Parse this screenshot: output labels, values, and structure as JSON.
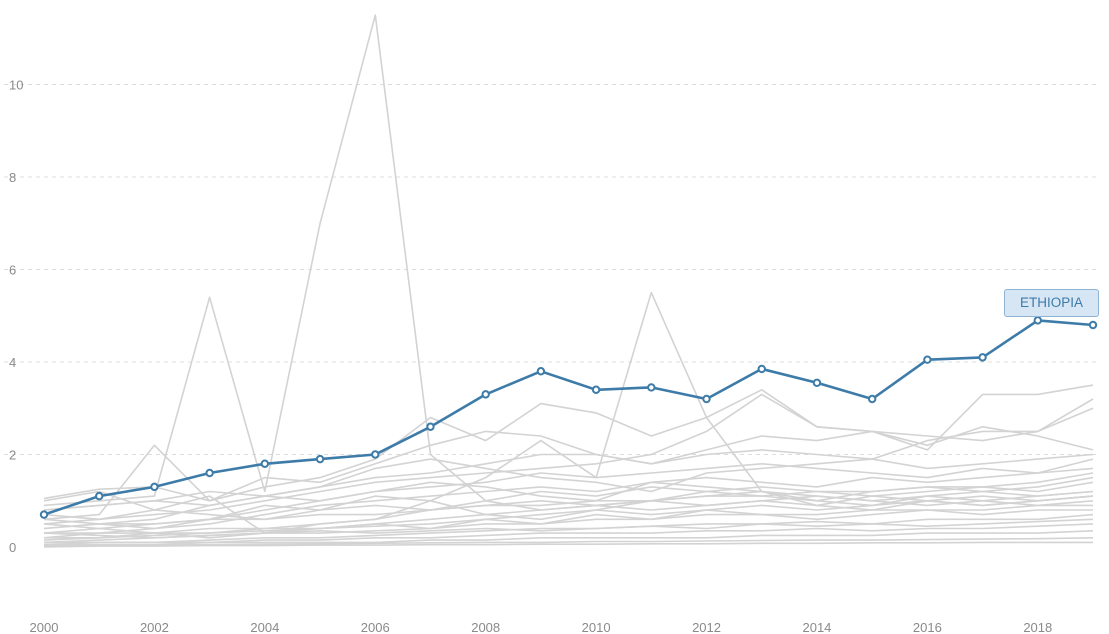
{
  "chart_data": {
    "type": "line",
    "title": "",
    "xlabel": "",
    "ylabel": "",
    "xlim": [
      2000,
      2019
    ],
    "ylim": [
      0,
      11.5
    ],
    "x_ticks": [
      "2000",
      "2002",
      "2004",
      "2006",
      "2008",
      "2010",
      "2012",
      "2014",
      "2016",
      "2018"
    ],
    "y_ticks": [
      "0",
      "2",
      "4",
      "6",
      "8",
      "10"
    ],
    "grid": "horizontal-dashed",
    "highlight_color": "#3d7ba8",
    "background_series_color": "#d3d3d3",
    "x": [
      2000,
      2001,
      2002,
      2003,
      2004,
      2005,
      2006,
      2007,
      2008,
      2009,
      2010,
      2011,
      2012,
      2013,
      2014,
      2015,
      2016,
      2017,
      2018,
      2019
    ],
    "highlight": {
      "name": "ETHIOPIA",
      "values": [
        0.7,
        1.1,
        1.3,
        1.6,
        1.8,
        1.9,
        2.0,
        2.6,
        3.3,
        3.8,
        3.4,
        3.45,
        3.2,
        3.85,
        3.55,
        3.2,
        4.05,
        4.1,
        4.9,
        4.8
      ]
    },
    "background_series": [
      [
        0.9,
        1.0,
        1.1,
        5.4,
        1.2,
        7.0,
        11.5,
        2.0,
        1.0,
        0.8,
        0.9,
        1.0,
        1.1,
        1.2,
        1.1,
        1.0,
        1.1,
        1.2,
        1.1,
        1.2
      ],
      [
        0.6,
        0.7,
        2.2,
        1.0,
        1.3,
        1.5,
        1.9,
        2.8,
        2.3,
        3.1,
        2.9,
        2.4,
        2.8,
        3.4,
        2.6,
        2.5,
        2.2,
        2.6,
        2.4,
        2.1
      ],
      [
        1.0,
        1.2,
        0.8,
        1.1,
        0.3,
        0.5,
        0.6,
        1.0,
        1.5,
        2.3,
        1.5,
        5.5,
        2.8,
        1.2,
        0.9,
        0.8,
        1.0,
        1.1,
        1.0,
        1.1
      ],
      [
        1.05,
        1.25,
        1.3,
        1.0,
        1.5,
        1.4,
        1.8,
        2.2,
        2.5,
        2.4,
        2.0,
        1.8,
        2.1,
        2.4,
        2.3,
        2.5,
        2.1,
        3.3,
        3.3,
        3.5
      ],
      [
        0.8,
        0.9,
        1.0,
        1.2,
        1.1,
        1.3,
        1.5,
        1.6,
        1.8,
        2.0,
        2.0,
        1.8,
        2.0,
        2.1,
        2.0,
        1.9,
        2.3,
        2.5,
        2.5,
        3.2
      ],
      [
        0.5,
        0.6,
        0.7,
        0.8,
        1.0,
        1.2,
        1.4,
        1.5,
        1.6,
        1.7,
        1.8,
        2.0,
        2.5,
        3.3,
        2.6,
        2.5,
        2.4,
        2.3,
        2.5,
        3.0
      ],
      [
        0.4,
        0.5,
        0.6,
        0.9,
        1.1,
        1.3,
        1.7,
        1.9,
        1.7,
        1.5,
        1.4,
        1.2,
        1.6,
        1.7,
        1.8,
        1.9,
        1.7,
        1.8,
        1.9,
        2.0
      ],
      [
        0.3,
        0.4,
        0.5,
        0.6,
        0.8,
        1.0,
        1.2,
        1.3,
        1.4,
        1.6,
        1.5,
        1.6,
        1.7,
        1.8,
        1.7,
        1.6,
        1.5,
        1.7,
        1.6,
        1.9
      ],
      [
        0.2,
        0.3,
        0.4,
        0.5,
        0.7,
        0.9,
        1.0,
        1.1,
        1.2,
        1.3,
        1.2,
        1.4,
        1.5,
        1.4,
        1.3,
        1.5,
        1.4,
        1.5,
        1.6,
        1.7
      ],
      [
        0.6,
        0.5,
        0.4,
        0.6,
        0.9,
        0.8,
        1.1,
        1.0,
        0.7,
        0.6,
        0.8,
        1.0,
        1.2,
        1.1,
        1.0,
        1.2,
        1.3,
        1.2,
        1.3,
        1.5
      ],
      [
        0.3,
        0.3,
        0.3,
        0.4,
        0.4,
        0.5,
        0.6,
        0.8,
        1.0,
        1.2,
        1.1,
        1.3,
        1.2,
        1.3,
        1.2,
        1.1,
        1.2,
        1.3,
        1.2,
        1.4
      ],
      [
        0.2,
        0.2,
        0.3,
        0.3,
        0.4,
        0.4,
        0.5,
        0.6,
        0.7,
        0.8,
        0.9,
        1.0,
        0.9,
        1.0,
        1.1,
        1.0,
        0.9,
        1.0,
        1.1,
        1.2
      ],
      [
        0.15,
        0.2,
        0.25,
        0.3,
        0.35,
        0.4,
        0.45,
        0.5,
        0.6,
        0.7,
        0.8,
        0.7,
        0.8,
        0.9,
        0.8,
        0.9,
        1.0,
        0.9,
        1.0,
        1.1
      ],
      [
        0.1,
        0.15,
        0.2,
        0.25,
        0.3,
        0.3,
        0.35,
        0.4,
        0.5,
        0.5,
        0.6,
        0.6,
        0.7,
        0.7,
        0.7,
        0.8,
        0.8,
        0.8,
        0.9,
        0.9
      ],
      [
        0.5,
        0.4,
        0.3,
        0.2,
        0.3,
        0.4,
        0.5,
        0.4,
        0.6,
        0.5,
        0.7,
        0.6,
        0.8,
        0.7,
        0.6,
        0.7,
        0.8,
        0.7,
        0.8,
        0.8
      ],
      [
        0.05,
        0.1,
        0.1,
        0.15,
        0.2,
        0.2,
        0.25,
        0.3,
        0.35,
        0.4,
        0.4,
        0.45,
        0.5,
        0.5,
        0.55,
        0.5,
        0.6,
        0.6,
        0.6,
        0.7
      ],
      [
        0.3,
        0.25,
        0.2,
        0.25,
        0.3,
        0.35,
        0.3,
        0.35,
        0.4,
        0.35,
        0.4,
        0.45,
        0.4,
        0.5,
        0.45,
        0.5,
        0.45,
        0.5,
        0.55,
        0.6
      ],
      [
        0.1,
        0.1,
        0.1,
        0.1,
        0.15,
        0.15,
        0.2,
        0.2,
        0.25,
        0.3,
        0.3,
        0.3,
        0.35,
        0.35,
        0.4,
        0.35,
        0.4,
        0.4,
        0.45,
        0.5
      ],
      [
        0.05,
        0.05,
        0.05,
        0.1,
        0.1,
        0.1,
        0.1,
        0.15,
        0.15,
        0.2,
        0.2,
        0.2,
        0.2,
        0.25,
        0.25,
        0.25,
        0.3,
        0.3,
        0.3,
        0.35
      ],
      [
        0.02,
        0.03,
        0.04,
        0.05,
        0.06,
        0.07,
        0.08,
        0.09,
        0.1,
        0.1,
        0.12,
        0.12,
        0.13,
        0.14,
        0.15,
        0.15,
        0.16,
        0.17,
        0.18,
        0.2
      ],
      [
        0.0,
        0.02,
        0.02,
        0.03,
        0.03,
        0.04,
        0.04,
        0.05,
        0.05,
        0.06,
        0.06,
        0.07,
        0.07,
        0.08,
        0.08,
        0.09,
        0.09,
        0.1,
        0.1,
        0.1
      ],
      [
        0.8,
        0.9,
        1.0,
        0.9,
        1.1,
        1.0,
        1.2,
        1.4,
        1.3,
        1.1,
        1.0,
        1.4,
        1.3,
        1.2,
        1.0,
        0.9,
        1.1,
        1.0,
        0.9,
        1.0
      ],
      [
        0.7,
        0.6,
        0.8,
        0.7,
        0.6,
        0.8,
        0.9,
        0.8,
        0.9,
        1.0,
        0.9,
        0.8,
        0.9,
        1.0,
        0.9,
        1.1,
        1.0,
        0.9,
        1.0,
        1.1
      ],
      [
        0.4,
        0.5,
        0.5,
        0.6,
        0.6,
        0.7,
        0.7,
        0.8,
        0.9,
        0.9,
        1.0,
        1.0,
        1.1,
        1.1,
        1.2,
        1.2,
        1.3,
        1.3,
        1.4,
        1.6
      ]
    ]
  }
}
